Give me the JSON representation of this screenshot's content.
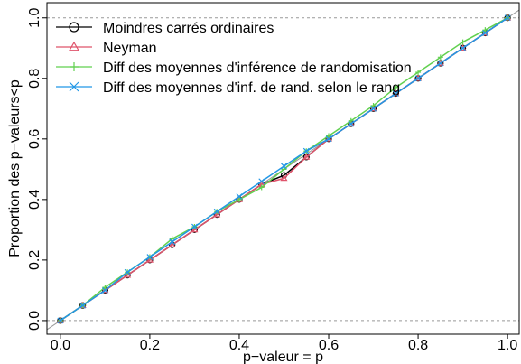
{
  "chart_data": {
    "type": "line",
    "x": [
      0,
      0.05,
      0.1,
      0.15,
      0.2,
      0.25,
      0.3,
      0.35,
      0.4,
      0.45,
      0.5,
      0.55,
      0.6,
      0.65,
      0.7,
      0.75,
      0.8,
      0.85,
      0.9,
      0.95,
      1
    ],
    "series": [
      {
        "name": "Moindres carrés ordinaires",
        "color": "#000000",
        "marker": "circle",
        "values": [
          0,
          0.05,
          0.1,
          0.15,
          0.2,
          0.25,
          0.3,
          0.35,
          0.4,
          0.45,
          0.48,
          0.54,
          0.6,
          0.65,
          0.7,
          0.75,
          0.8,
          0.85,
          0.9,
          0.95,
          1
        ]
      },
      {
        "name": "Neyman",
        "color": "#df536b",
        "marker": "triangle",
        "values": [
          0,
          0.05,
          0.1,
          0.15,
          0.2,
          0.25,
          0.3,
          0.35,
          0.4,
          0.45,
          0.47,
          0.54,
          0.6,
          0.65,
          0.7,
          0.75,
          0.8,
          0.85,
          0.9,
          0.95,
          1
        ]
      },
      {
        "name": "Diff des moyennes d'inférence de randomisation",
        "color": "#61d04f",
        "marker": "plus",
        "values": [
          0,
          0.05,
          0.11,
          0.16,
          0.21,
          0.27,
          0.31,
          0.36,
          0.4,
          0.44,
          0.5,
          0.56,
          0.61,
          0.66,
          0.71,
          0.77,
          0.82,
          0.87,
          0.92,
          0.96,
          1
        ]
      },
      {
        "name": "Diff des moyennes d'inf. de rand. selon le rang",
        "color": "#2297e6",
        "marker": "cross",
        "values": [
          0,
          0.05,
          0.1,
          0.16,
          0.21,
          0.26,
          0.31,
          0.36,
          0.41,
          0.46,
          0.51,
          0.56,
          0.6,
          0.65,
          0.7,
          0.75,
          0.8,
          0.85,
          0.9,
          0.95,
          1
        ]
      }
    ],
    "xlabel": "p−valeur = p",
    "ylabel": "Proportion des p−valeurs<p",
    "xlim": [
      -0.03,
      1.026
    ],
    "ylim": [
      -0.045,
      1.05
    ],
    "xticks": [
      {
        "value": 0,
        "label": "0.0"
      },
      0.2,
      0.4,
      0.6,
      0.8,
      {
        "value": 1,
        "label": "1.0"
      }
    ],
    "yticks": [
      {
        "value": 0,
        "label": "0.0"
      },
      0.2,
      0.4,
      0.6,
      0.8,
      {
        "value": 1,
        "label": "1.0"
      }
    ],
    "hlines": [
      0,
      1
    ],
    "legend": "top-left"
  }
}
